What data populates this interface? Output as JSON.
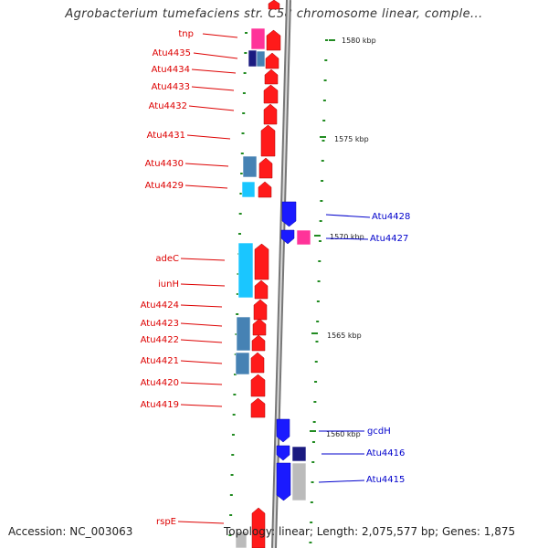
{
  "title": "Agrobacterium tumefaciens str. C58 chromosome linear, comple...",
  "accession_text": "Accession: NC_003063",
  "topology_text": "Topology: linear; Length: 2,075,577 bp; Genes: 1,875",
  "scale_ticks": [
    "1580 kbp",
    "1575 kbp",
    "1570 kbp",
    "1565 kbp",
    "1560 kbp"
  ],
  "colors": {
    "forward_gene": "#ff1a1a",
    "reverse_gene": "#1a1aff",
    "magenta_feature": "#ff3399",
    "cyan_feature": "#1ac6ff",
    "steel_feature": "#4682b4",
    "navy_feature": "#1a1a80",
    "gray_feature": "#bbbbbb",
    "tick": "#228b22",
    "left_label": "#dd0000",
    "right_label": "#0000cc"
  },
  "left_genes": [
    "tnp",
    "Atu4435",
    "Atu4434",
    "Atu4433",
    "Atu4432",
    "Atu4431",
    "Atu4430",
    "Atu4429",
    "adeC",
    "iunH",
    "Atu4424",
    "Atu4423",
    "Atu4422",
    "Atu4421",
    "Atu4420",
    "Atu4419",
    "rspE"
  ],
  "right_genes": [
    "Atu4428",
    "Atu4427",
    "gcdH",
    "Atu4416",
    "Atu4415"
  ]
}
